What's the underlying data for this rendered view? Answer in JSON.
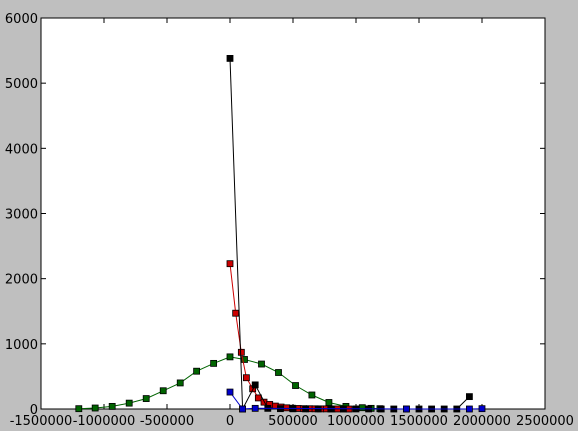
{
  "chart_data": {
    "type": "line",
    "title": "",
    "xlabel": "",
    "ylabel": "",
    "xlim": [
      -1500000,
      2500000
    ],
    "ylim": [
      0,
      6000
    ],
    "grid": false,
    "xticks": [
      -1500000,
      -1000000,
      -500000,
      0,
      500000,
      1000000,
      1500000,
      2000000,
      2500000
    ],
    "xtick_labels": [
      "-1500000",
      "-1000000",
      "-500000",
      "0",
      "500000",
      "1000000",
      "1500000",
      "2000000",
      "2500000"
    ],
    "yticks": [
      0,
      1000,
      2000,
      3000,
      4000,
      5000,
      6000
    ],
    "ytick_labels": [
      "0",
      "1000",
      "2000",
      "3000",
      "4000",
      "5000",
      "6000"
    ],
    "series": [
      {
        "color": "#006400",
        "marker": "square",
        "x": [
          -1200000,
          -1070000,
          -935000,
          -800000,
          -665000,
          -530000,
          -395000,
          -265000,
          -130000,
          0,
          115000,
          250000,
          385000,
          520000,
          650000,
          785000,
          920000,
          1050000,
          1120000,
          1190000
        ],
        "y": [
          5,
          15,
          40,
          90,
          160,
          280,
          400,
          580,
          700,
          800,
          760,
          690,
          560,
          360,
          215,
          100,
          40,
          20,
          10,
          5
        ]
      },
      {
        "color": "#cc0000",
        "marker": "square",
        "x": [
          0,
          45000,
          90000,
          130000,
          180000,
          225000,
          270000,
          315000,
          360000,
          405000,
          450000,
          495000,
          540000,
          585000,
          630000,
          675000,
          720000,
          765000,
          810000,
          855000,
          900000,
          945000
        ],
        "y": [
          2230,
          1470,
          870,
          480,
          310,
          170,
          105,
          70,
          45,
          30,
          18,
          12,
          8,
          5,
          4,
          3,
          2,
          2,
          1,
          1,
          1,
          0
        ]
      },
      {
        "color": "#000000",
        "marker": "square",
        "x": [
          0,
          100000,
          200000,
          300000,
          400000,
          500000,
          600000,
          700000,
          800000,
          900000,
          1000000,
          1100000,
          1200000,
          1300000,
          1400000,
          1500000,
          1600000,
          1700000,
          1800000,
          1900000
        ],
        "y": [
          5380,
          0,
          370,
          10,
          5,
          3,
          2,
          2,
          1,
          1,
          1,
          1,
          0,
          0,
          0,
          0,
          0,
          0,
          0,
          190
        ]
      },
      {
        "color": "#0000cc",
        "marker": "square",
        "x": [
          0,
          100000,
          200000,
          1400000,
          1900000,
          2000000
        ],
        "y": [
          260,
          0,
          10,
          0,
          0,
          5
        ]
      }
    ]
  }
}
